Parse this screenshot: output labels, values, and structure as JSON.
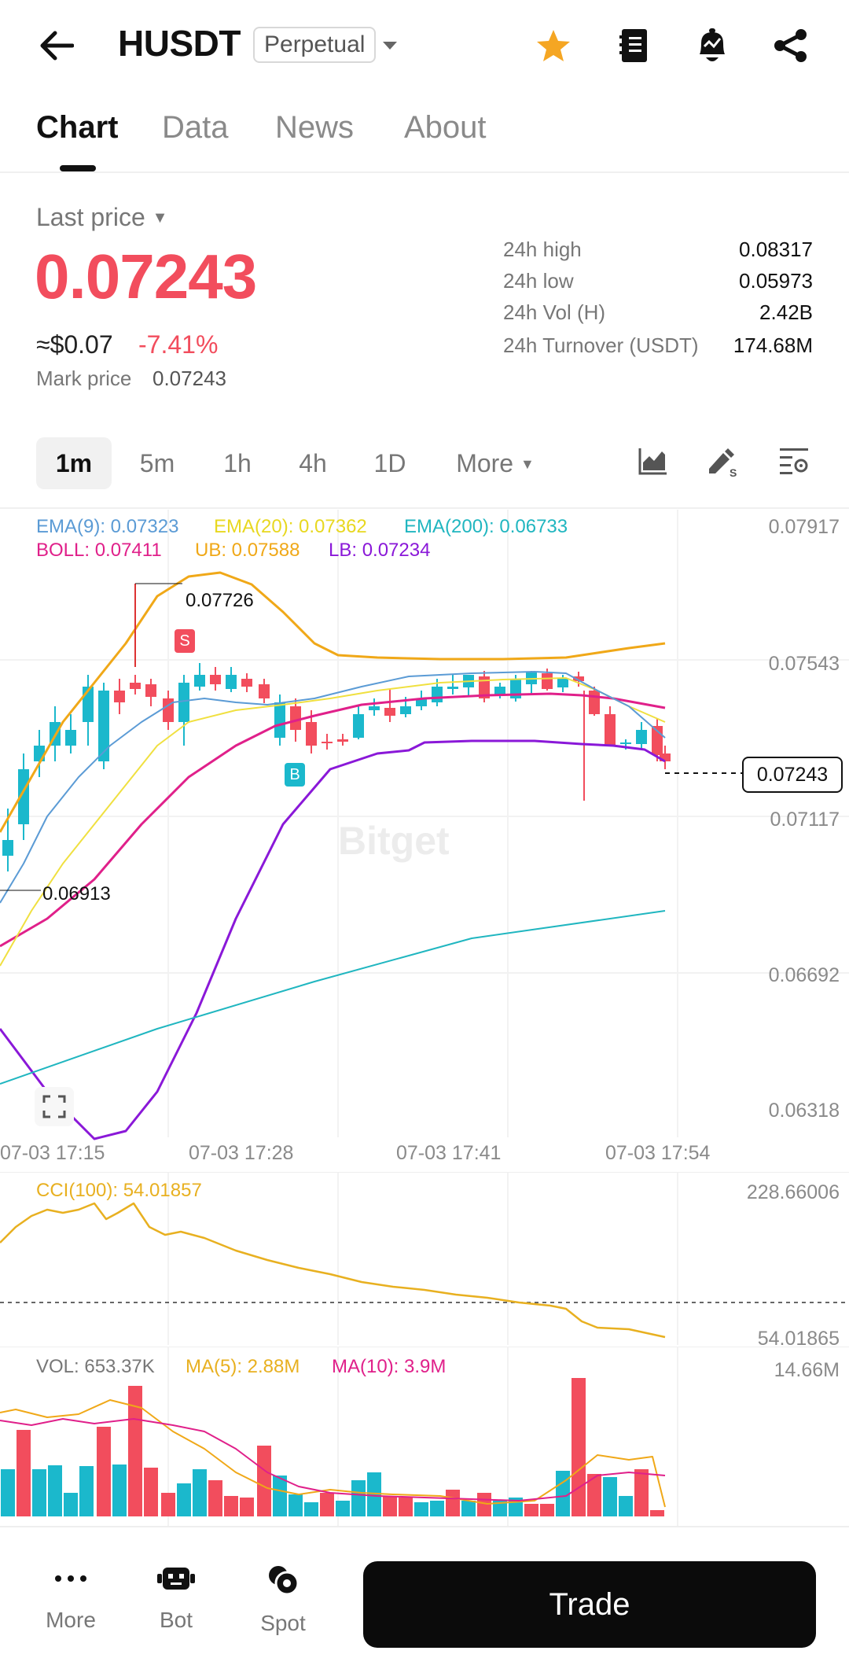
{
  "header": {
    "title": "HUSDT",
    "contract_type": "Perpetual",
    "icons": [
      "back-arrow-icon",
      "chevron-down-icon",
      "star-icon",
      "notebook-icon",
      "alert-bell-icon",
      "share-icon"
    ],
    "star_color": "#f5a623"
  },
  "tabs": [
    "Chart",
    "Data",
    "News",
    "About"
  ],
  "price": {
    "label": "Last price",
    "last": "0.07243",
    "usd": "≈$0.07",
    "change": "-7.41%",
    "mark_label": "Mark price",
    "mark_value": "0.07243",
    "down_color": "#f24d5d",
    "up_color": "#1bb8cc"
  },
  "stats": [
    {
      "label": "24h high",
      "value": "0.08317"
    },
    {
      "label": "24h low",
      "value": "0.05973"
    },
    {
      "label": "24h Vol (H)",
      "value": "2.42B"
    },
    {
      "label": "24h Turnover (USDT)",
      "value": "174.68M"
    }
  ],
  "timeframes": {
    "options": [
      "1m",
      "5m",
      "1h",
      "4h",
      "1D",
      "More"
    ],
    "selected": "1m"
  },
  "chart_tools": [
    "chart-type-icon",
    "drawing-tool-icon",
    "indicator-settings-icon",
    "fullscreen-icon"
  ],
  "indicators": {
    "ema9": "EMA(9): 0.07323",
    "ema20": "EMA(20): 0.07362",
    "ema200": "EMA(200): 0.06733",
    "boll": "BOLL: 0.07411",
    "ub": "UB: 0.07588",
    "lb": "LB: 0.07234",
    "cci": "CCI(100): 54.01857",
    "vol": "VOL: 653.37K",
    "ma5": "MA(5): 2.88M",
    "ma10": "MA(10): 3.9M",
    "colors": {
      "ema9": "#5b9bd5",
      "ema20": "#f0e040",
      "ema200": "#20b6c0",
      "boll": "#e0208a",
      "ub": "#f0a818",
      "lb": "#8a18d8",
      "cci": "#e8b020"
    }
  },
  "main_chart": {
    "y_labels": [
      "0.07917",
      "0.07543",
      "0.07117",
      "0.06692",
      "0.06318"
    ],
    "x_labels": [
      "07-03 17:15",
      "07-03 17:28",
      "07-03 17:41",
      "07-03 17:54"
    ],
    "high_marker": "0.07726",
    "low_marker": "0.06913",
    "current_price_tag": "0.07243",
    "sell_marker": "S",
    "buy_marker": "B",
    "watermark": "Bitget"
  },
  "cci_chart": {
    "y_labels": [
      "228.66006",
      "54.01865"
    ]
  },
  "vol_chart": {
    "y_labels": [
      "14.66M"
    ]
  },
  "bottom_nav": {
    "items": [
      {
        "label": "More",
        "icon": "more-dots-icon"
      },
      {
        "label": "Bot",
        "icon": "bot-icon"
      },
      {
        "label": "Spot",
        "icon": "spot-icon"
      }
    ],
    "trade_label": "Trade"
  }
}
